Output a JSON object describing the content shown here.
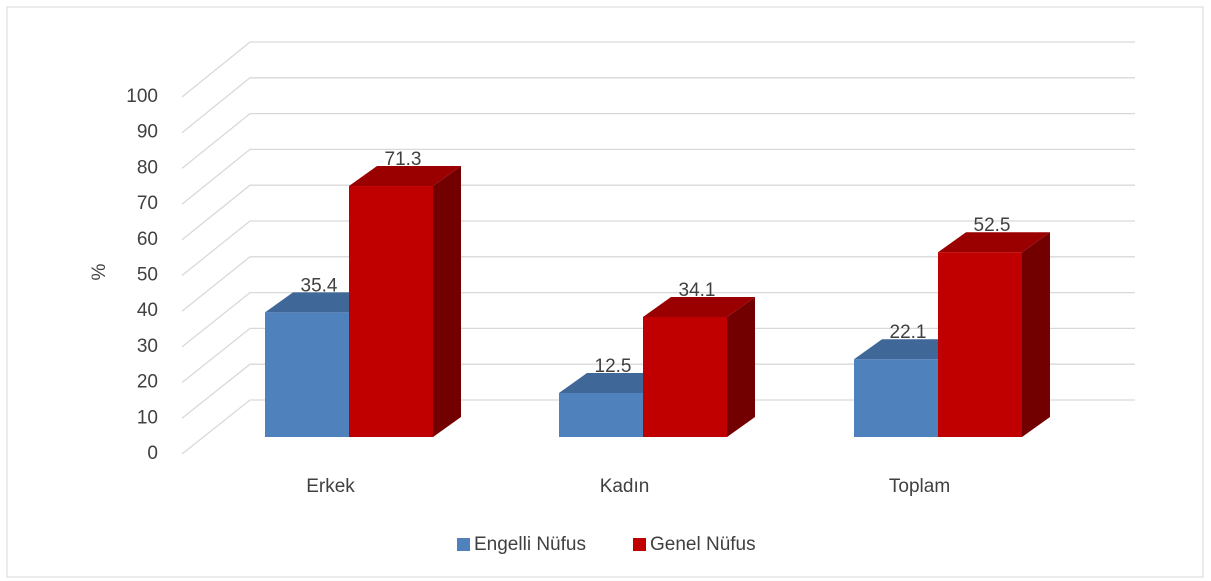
{
  "chart_data": {
    "type": "bar3d",
    "y_label": "%",
    "categories": [
      "Erkek",
      "Kadın",
      "Toplam"
    ],
    "series": [
      {
        "name": "Engelli Nüfus",
        "color": "#4f81bd",
        "values": [
          35.4,
          12.5,
          22.1
        ]
      },
      {
        "name": "Genel Nüfus",
        "color": "#c00000",
        "values": [
          71.3,
          34.1,
          52.5
        ]
      }
    ],
    "ylim": [
      0,
      100
    ],
    "yticks": [
      0,
      10,
      20,
      30,
      40,
      50,
      60,
      70,
      80,
      90,
      100
    ],
    "grid": true,
    "legend": "bottom"
  }
}
